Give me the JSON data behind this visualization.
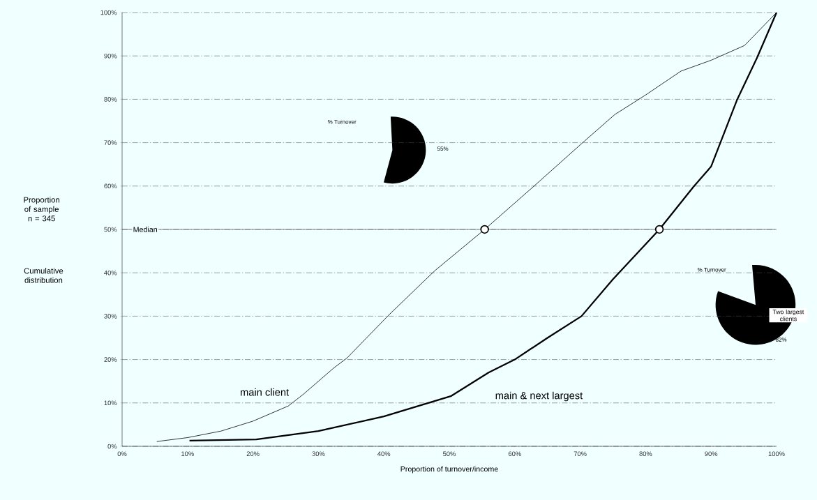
{
  "chart_data": {
    "type": "line",
    "xlabel": "Proportion of turnover/income",
    "xlim": [
      0,
      100
    ],
    "ylim": [
      0,
      100
    ],
    "xticks": [
      {
        "value": 0,
        "label": "0%"
      },
      {
        "value": 10,
        "label": "10%"
      },
      {
        "value": 20,
        "label": "20%"
      },
      {
        "value": 30,
        "label": "30%"
      },
      {
        "value": 40,
        "label": "40%"
      },
      {
        "value": 50,
        "label": "50%"
      },
      {
        "value": 60,
        "label": "60%"
      },
      {
        "value": 70,
        "label": "70%"
      },
      {
        "value": 80,
        "label": "80%"
      },
      {
        "value": 90,
        "label": "90%"
      },
      {
        "value": 100,
        "label": "100%"
      }
    ],
    "yticks": [
      {
        "value": 0,
        "label": "0%"
      },
      {
        "value": 10,
        "label": "10%"
      },
      {
        "value": 20,
        "label": "20%"
      },
      {
        "value": 30,
        "label": "30%"
      },
      {
        "value": 40,
        "label": "40%"
      },
      {
        "value": 50,
        "label": "50%"
      },
      {
        "value": 60,
        "label": "60%"
      },
      {
        "value": 70,
        "label": "70%"
      },
      {
        "value": 80,
        "label": "80%"
      },
      {
        "value": 90,
        "label": "90%"
      },
      {
        "value": 100,
        "label": "100%"
      }
    ],
    "grid": "y",
    "series": [
      {
        "name": "main client",
        "color": "#000000",
        "x": [
          5.3,
          10,
          15.1,
          20,
          25.4,
          27.7,
          32.3,
          34.4,
          40.7,
          47.8,
          55.4,
          62.8,
          70.6,
          75.3,
          80,
          85.4,
          90,
          95.1,
          100
        ],
        "values": [
          1.1,
          2,
          3.5,
          5.8,
          9.3,
          12,
          18,
          20.4,
          30.2,
          40.5,
          50,
          59.8,
          70.3,
          76.5,
          81,
          86.5,
          89,
          92.4,
          100
        ]
      },
      {
        "name": "main & next largest",
        "color": "#000000",
        "x": [
          10.3,
          20.5,
          30,
          40,
          50.3,
          56,
          60,
          65,
          70.2,
          75,
          82.1,
          87.3,
          90,
          94,
          97,
          100
        ],
        "values": [
          1.3,
          1.6,
          3.5,
          6.9,
          11.6,
          17,
          20,
          25,
          30,
          38.5,
          50,
          59.8,
          64.5,
          80,
          89.5,
          100
        ]
      },
      {
        "type": "scatter",
        "color": "#000000",
        "x": [
          55.4,
          82.1
        ],
        "values": [
          50,
          50
        ]
      }
    ],
    "ref_lines": [
      {
        "axis": "y",
        "value": 50,
        "label": "Median"
      }
    ],
    "annotations": [
      "% Turnover",
      "55%",
      "Proportion of sample n = 345",
      "% Turnover",
      "Two largest clients",
      "82%",
      "Cumulative distribution"
    ]
  }
}
